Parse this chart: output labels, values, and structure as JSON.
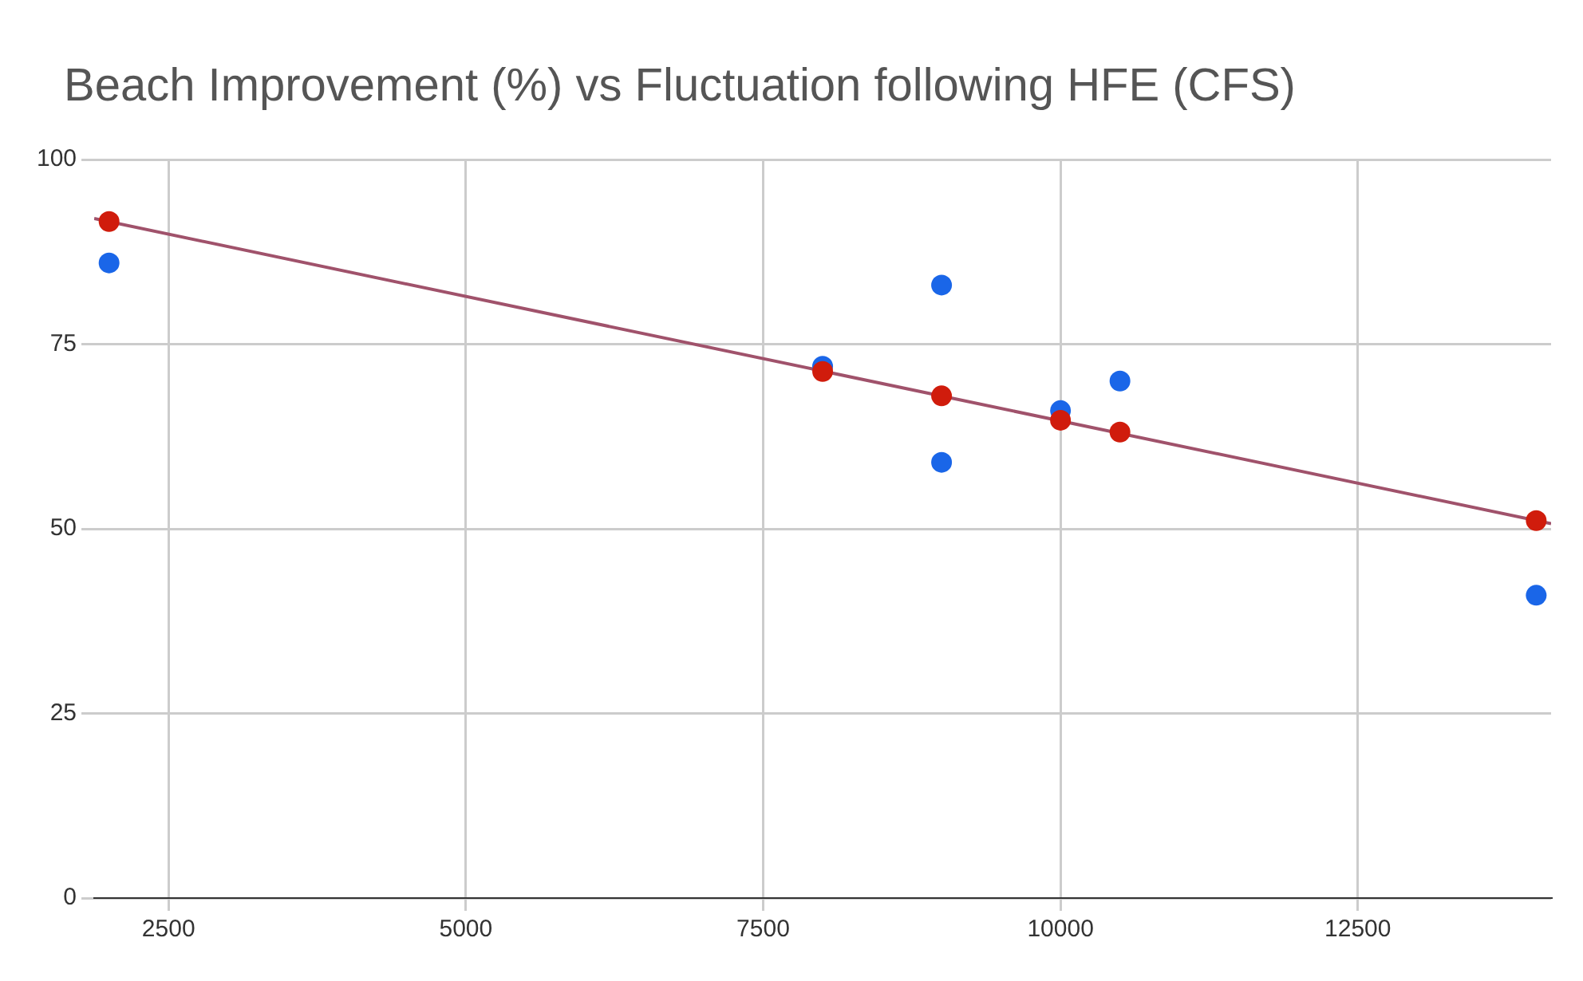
{
  "chart_data": {
    "type": "scatter",
    "title": "Beach Improvement (%) vs Fluctuation following HFE (CFS)",
    "xlim": [
      1875,
      14125
    ],
    "xticks": [
      2500,
      5000,
      7500,
      10000,
      12500
    ],
    "ylim": [
      0,
      100
    ],
    "yticks": [
      0,
      25,
      50,
      75,
      100
    ],
    "grid": true,
    "legend": false,
    "marker": "circle",
    "series": [
      {
        "type": "scatter",
        "color": "#1a66e8",
        "x": [
          2000,
          8000,
          9000,
          9000,
          10000,
          10500,
          14000
        ],
        "values": [
          86,
          72,
          83,
          59,
          66,
          70,
          41
        ]
      },
      {
        "type": "line",
        "color": "#a0526b",
        "marker": "none",
        "x": [
          1875,
          14125
        ],
        "values": [
          92,
          50.7
        ]
      },
      {
        "type": "scatter",
        "color": "#d01c0c",
        "x": [
          2000,
          8000,
          9000,
          10000,
          10500,
          14000
        ],
        "values": [
          91.6,
          71.3,
          68,
          64.7,
          63.1,
          51.1
        ]
      }
    ]
  }
}
